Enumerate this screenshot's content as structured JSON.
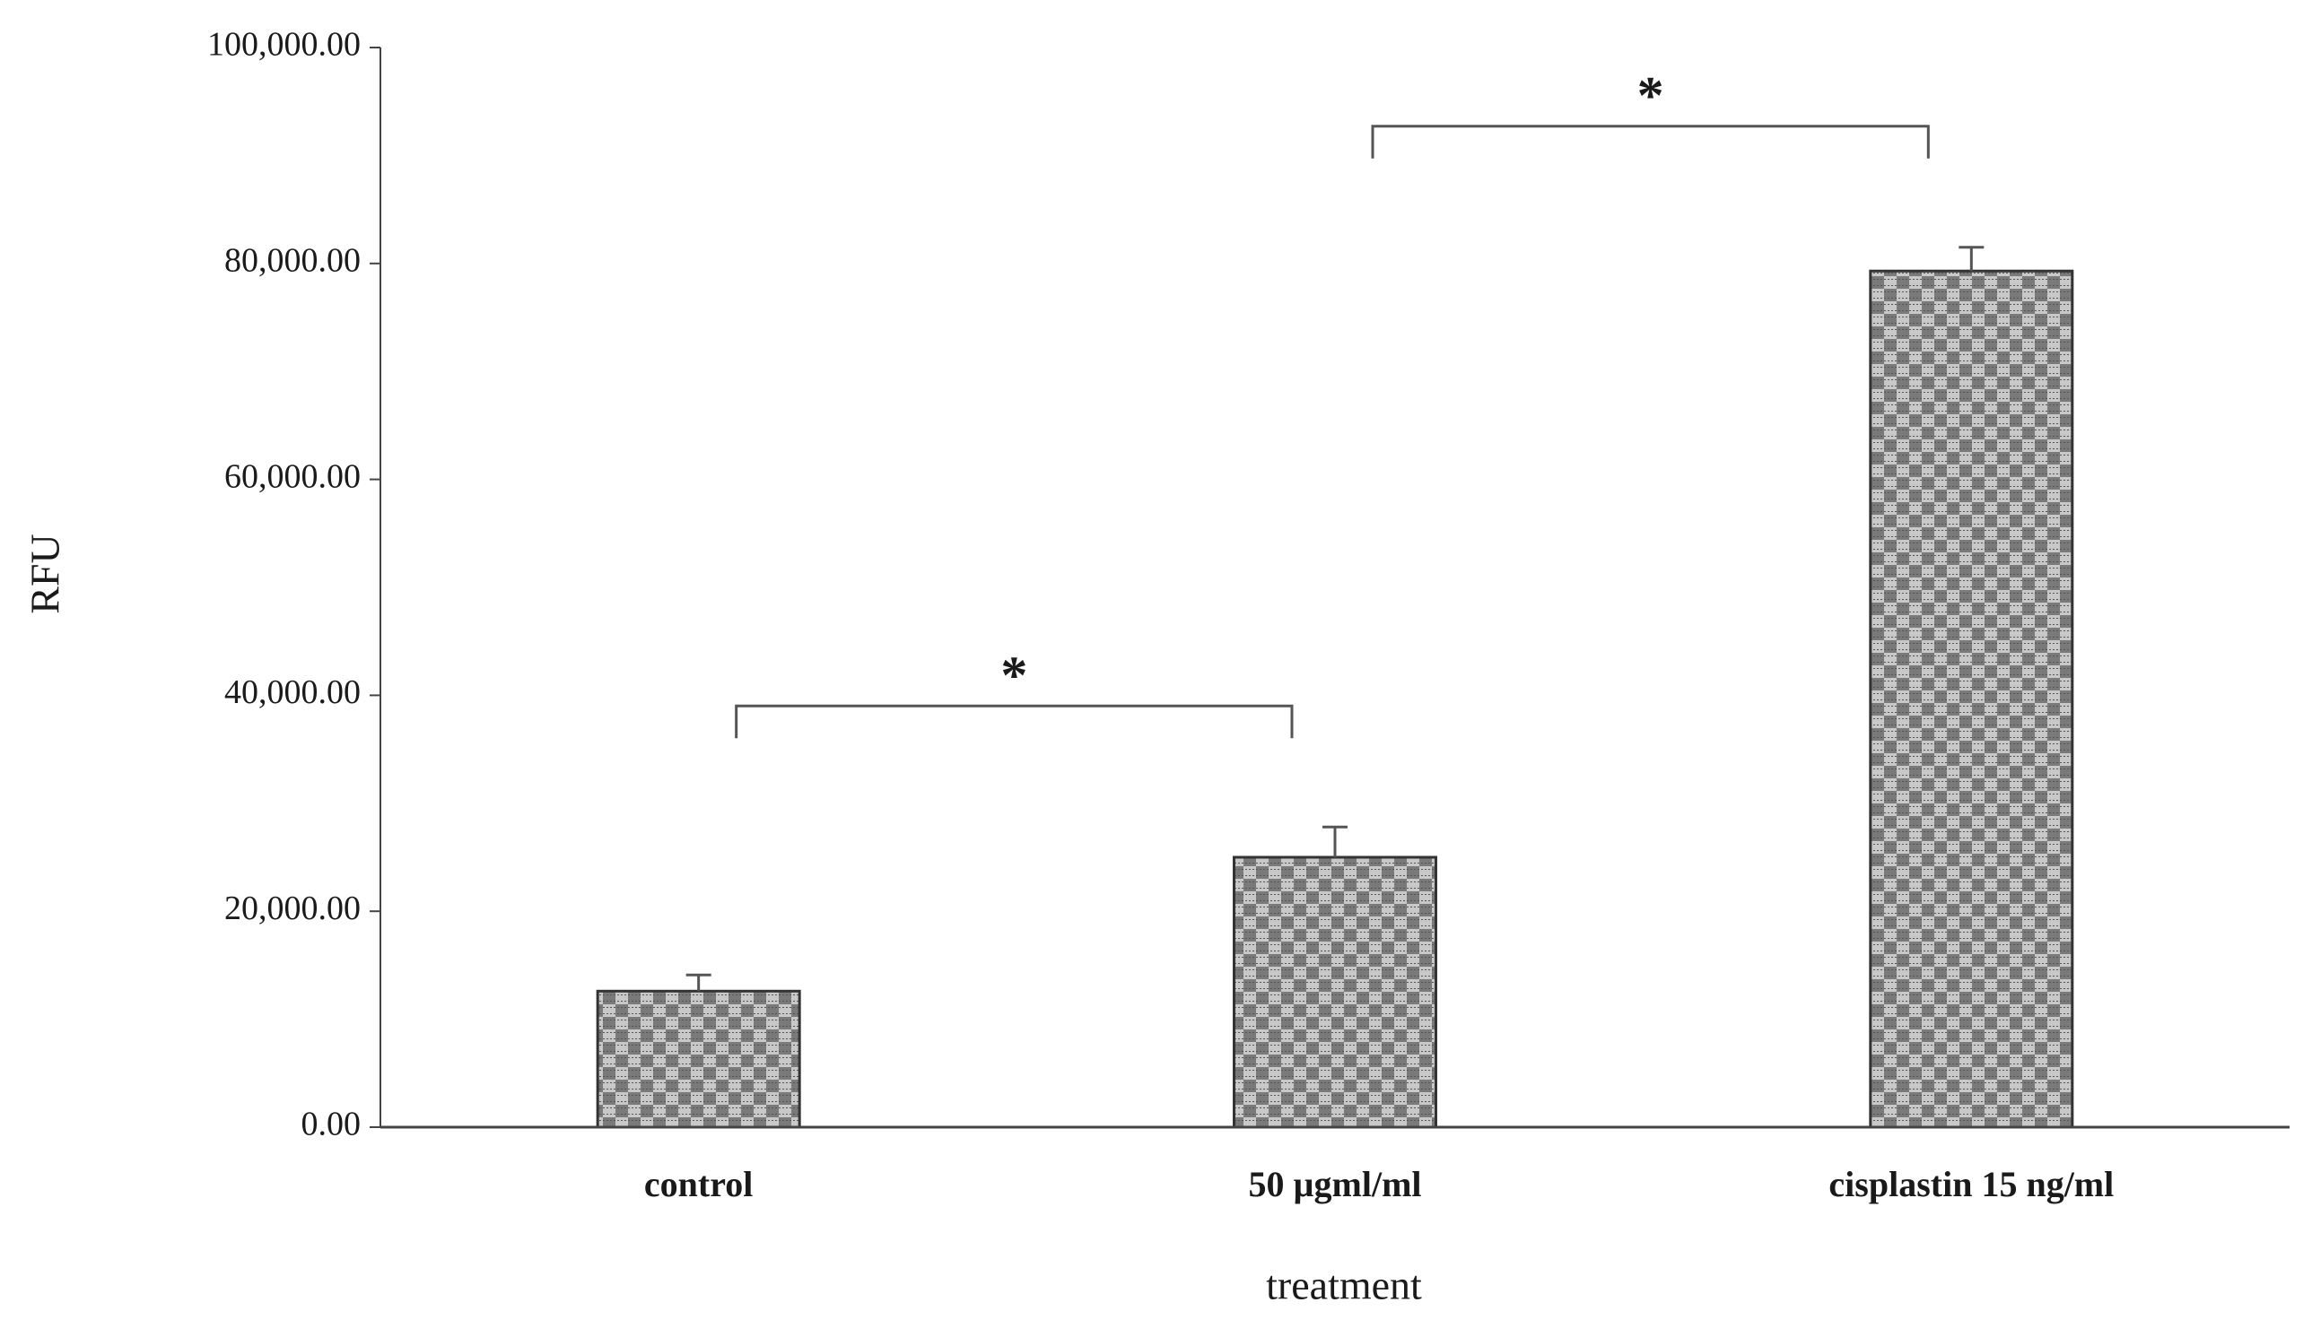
{
  "chart_data": {
    "type": "bar",
    "x_label": "treatment",
    "y_label": "RFU",
    "categories": [
      "control",
      "50 µgml/ml",
      "cisplastin 15 ng/ml"
    ],
    "values": [
      12600,
      25000,
      79300
    ],
    "errors": [
      1500,
      2800,
      2200
    ],
    "color": "#7a7a7a",
    "ylim": [
      0,
      100000
    ],
    "yticks": [
      {
        "value": 0,
        "label": "0.00"
      },
      {
        "value": 20000,
        "label": "20,000.00"
      },
      {
        "value": 40000,
        "label": "40,000.00"
      },
      {
        "value": 60000,
        "label": "60,000.00"
      },
      {
        "value": 80000,
        "label": "80,000.00"
      },
      {
        "value": 100000,
        "label": "100,000.00"
      }
    ],
    "annotations": [
      {
        "text": "*",
        "categories": [
          0,
          1
        ]
      },
      {
        "text": "*",
        "categories": [
          1,
          2
        ]
      }
    ]
  }
}
